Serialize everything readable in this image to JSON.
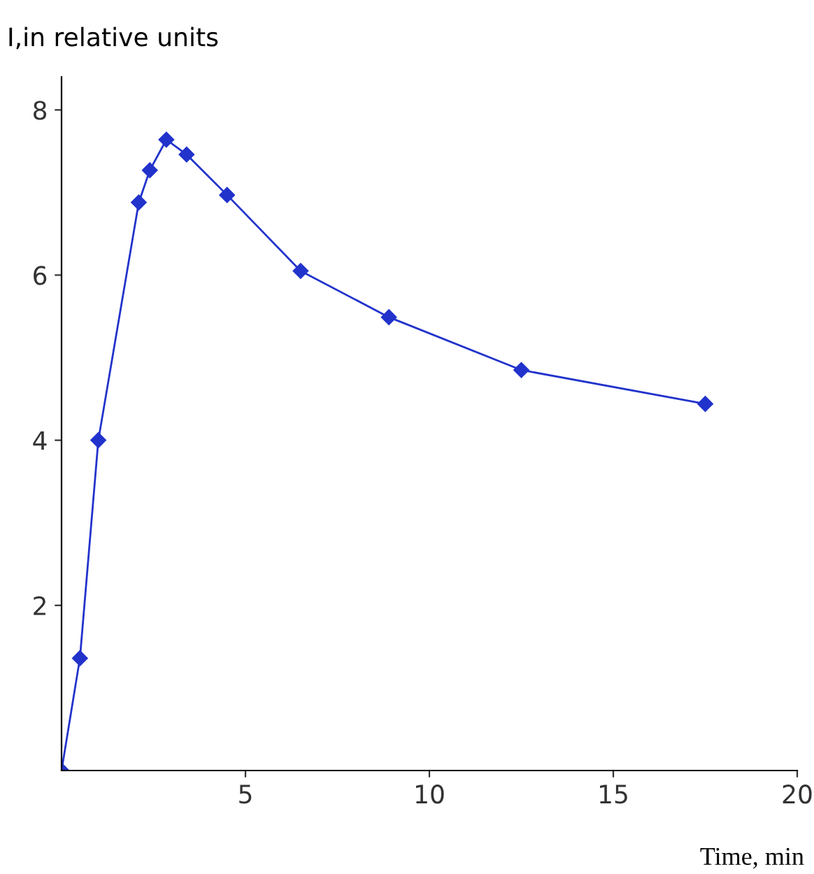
{
  "chart_data": {
    "type": "line",
    "xlabel": "Time, min",
    "ylabel": "I,in relative units",
    "x": [
      0,
      0.5,
      1.0,
      2.1,
      2.4,
      2.85,
      3.4,
      4.5,
      6.5,
      8.9,
      12.5,
      17.5
    ],
    "series": [
      {
        "color": "#2233cc",
        "values": [
          0,
          1.36,
          4.0,
          6.88,
          7.27,
          7.64,
          7.46,
          6.97,
          6.05,
          5.49,
          4.85,
          4.44
        ]
      }
    ],
    "xlim": [
      0,
      20
    ],
    "xticks": [
      5,
      10,
      15,
      20
    ],
    "ylim": [
      0,
      8.4
    ],
    "yticks": [
      2,
      4,
      6,
      8
    ],
    "marker": "diamond",
    "line_style": "solid",
    "grid": false,
    "legend": false
  }
}
